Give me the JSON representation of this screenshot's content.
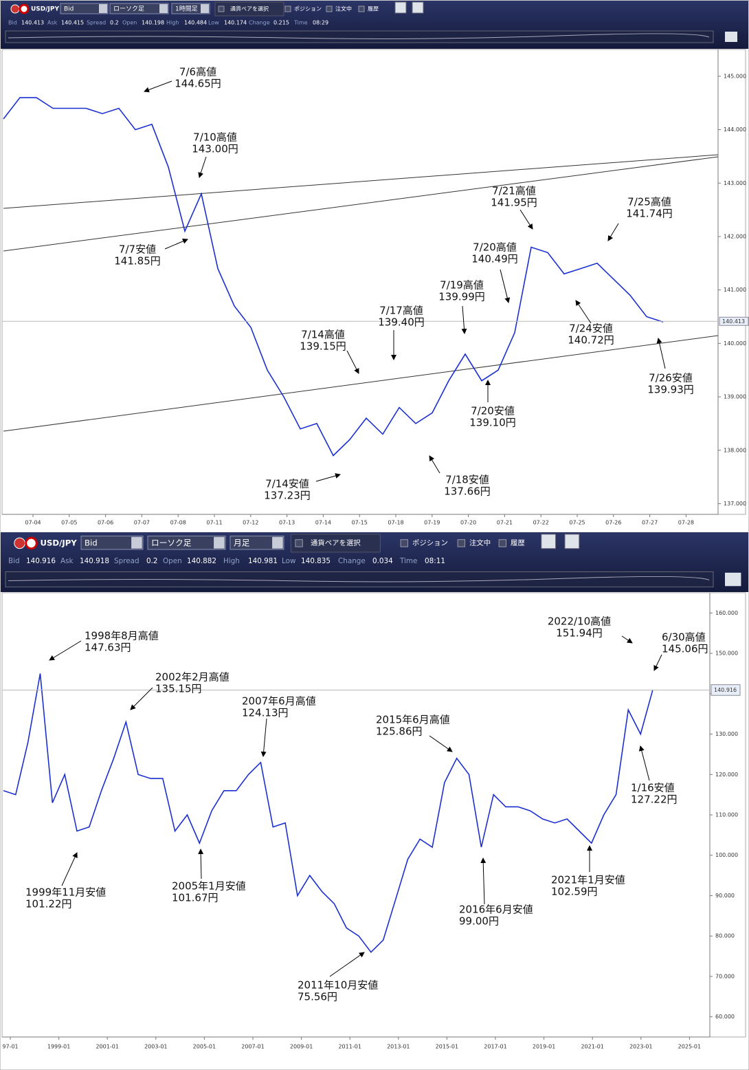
{
  "panels": [
    {
      "toolbar": {
        "pair": "USD/JPY",
        "price_side": "Bid",
        "chart_kind": "ローソク足",
        "timeframe": "1時間足",
        "select_pair": "通貨ペアを選択",
        "checks": [
          "ポジション",
          "注文中",
          "履歴"
        ],
        "stats": [
          {
            "label": "Bid",
            "value": 140.413
          },
          {
            "label": "Ask",
            "value": 140.415
          },
          {
            "label": "Spread",
            "value": 0.2
          },
          {
            "label": "Open",
            "value": 140.198
          },
          {
            "label": "High",
            "value": 140.484
          },
          {
            "label": "Low",
            "value": 140.174
          },
          {
            "label": "Change",
            "value": 0.215
          },
          {
            "label": "Time",
            "value": "08:29"
          }
        ]
      },
      "chart": {
        "type": "line",
        "ylim": [
          136.8,
          145.5
        ],
        "yticks": [
          {
            "value": 137,
            "label": "137.000"
          },
          {
            "value": 138,
            "label": "138.000"
          },
          {
            "value": 139,
            "label": "139.000"
          },
          {
            "value": 140,
            "label": "140.000"
          },
          {
            "value": 141,
            "label": "141.000"
          },
          {
            "value": 142,
            "label": "142.000"
          },
          {
            "value": 143,
            "label": "143.000"
          },
          {
            "value": 144,
            "label": "144.000"
          },
          {
            "value": 145,
            "label": "145.000"
          }
        ],
        "categories": [
          "07-04",
          "07-05",
          "07-06",
          "07-07",
          "07-08",
          "07-11",
          "07-12",
          "07-13",
          "07-14",
          "07-15",
          "07-18",
          "07-19",
          "07-20",
          "07-21",
          "07-22",
          "07-25",
          "07-26",
          "07-27",
          "07-28"
        ],
        "values": [
          144.2,
          144.6,
          144.6,
          144.4,
          144.4,
          144.4,
          144.3,
          144.4,
          144.0,
          144.1,
          143.3,
          142.1,
          142.8,
          141.4,
          140.7,
          140.3,
          139.5,
          139.0,
          138.4,
          138.5,
          137.9,
          138.2,
          138.6,
          138.3,
          138.8,
          138.5,
          138.7,
          139.3,
          139.8,
          139.3,
          139.5,
          140.2,
          141.8,
          141.7,
          141.3,
          141.4,
          141.5,
          141.2,
          140.9,
          140.5,
          140.4
        ],
        "color": "#1a2fd0",
        "annotations": [
          [
            "7/6高値",
            "144.65円"
          ],
          [
            "7/10高値",
            "143.00円"
          ],
          [
            "7/7安値",
            "141.85円"
          ],
          [
            "7/14高値",
            "139.15円"
          ],
          [
            "7/17高値",
            "139.40円"
          ],
          [
            "7/19高値",
            "139.99円"
          ],
          [
            "7/20高値",
            "140.49円"
          ],
          [
            "7/21高値",
            "141.95円"
          ],
          [
            "7/25高値",
            "141.74円"
          ],
          [
            "7/24安値",
            "140.72円"
          ],
          [
            "7/26安値",
            "139.93円"
          ],
          [
            "7/20安値",
            "139.10円"
          ],
          [
            "7/18安値",
            "137.66円"
          ],
          [
            "7/14安値",
            "137.23円"
          ]
        ]
      }
    },
    {
      "toolbar": {
        "pair": "USD/JPY",
        "price_side": "Bid",
        "chart_kind": "ローソク足",
        "timeframe": "月足",
        "select_pair": "通貨ペアを選択",
        "checks": [
          "ポジション",
          "注文中",
          "履歴"
        ],
        "stats": [
          {
            "label": "Bid",
            "value": 140.916
          },
          {
            "label": "Ask",
            "value": 140.918
          },
          {
            "label": "Spread",
            "value": 0.2
          },
          {
            "label": "Open",
            "value": 140.882
          },
          {
            "label": "High",
            "value": 140.981
          },
          {
            "label": "Low",
            "value": 140.835
          },
          {
            "label": "Change",
            "value": 0.034
          },
          {
            "label": "Time",
            "value": "08:11"
          }
        ]
      },
      "chart": {
        "type": "line",
        "ylim": [
          55,
          165
        ],
        "yticks": [
          {
            "value": 60,
            "label": "60.000"
          },
          {
            "value": 70,
            "label": "70.000"
          },
          {
            "value": 80,
            "label": "80.000"
          },
          {
            "value": 90,
            "label": "90.000"
          },
          {
            "value": 100,
            "label": "100.000"
          },
          {
            "value": 110,
            "label": "110.000"
          },
          {
            "value": 120,
            "label": "120.000"
          },
          {
            "value": 130,
            "label": "130.000"
          },
          {
            "value": 140,
            "label": "140.000"
          },
          {
            "value": 150,
            "label": "150.000"
          },
          {
            "value": 160,
            "label": "160.000"
          }
        ],
        "categories": [
          "97-01",
          "1999-01",
          "2001-01",
          "2003-01",
          "2005-01",
          "2007-01",
          "2009-01",
          "2011-01",
          "2013-01",
          "2015-01",
          "2017-01",
          "2019-01",
          "2021-01",
          "2023-01",
          "2025-01"
        ],
        "values": [
          116,
          115,
          128,
          145,
          113,
          120,
          106,
          107,
          116,
          124,
          133,
          120,
          119,
          119,
          106,
          110,
          103,
          111,
          116,
          116,
          120,
          123,
          107,
          108,
          90,
          95,
          91,
          88,
          82,
          80,
          76,
          79,
          89,
          99,
          104,
          102,
          118,
          124,
          120,
          102,
          115,
          112,
          112,
          111,
          109,
          108,
          109,
          106,
          103,
          110,
          115,
          136,
          130,
          141
        ],
        "color": "#1a2fd0",
        "annotations": [
          [
            "1998年8月高値",
            "147.63円"
          ],
          [
            "2002年2月高値",
            "135.15円"
          ],
          [
            "2007年6月高値",
            "124.13円"
          ],
          [
            "2015年6月高値",
            "125.86円"
          ],
          [
            "2022/10高値",
            "151.94円"
          ],
          [
            "6/30高値",
            "145.06円"
          ],
          [
            "1/16安値",
            "127.22円"
          ],
          [
            "2021年1月安値",
            "102.59円"
          ],
          [
            "2016年6月安値",
            "99.00円"
          ],
          [
            "2011年10月安値",
            "75.56円"
          ],
          [
            "2005年1月安値",
            "101.67円"
          ],
          [
            "1999年11月安値",
            "101.22円"
          ]
        ]
      }
    }
  ]
}
